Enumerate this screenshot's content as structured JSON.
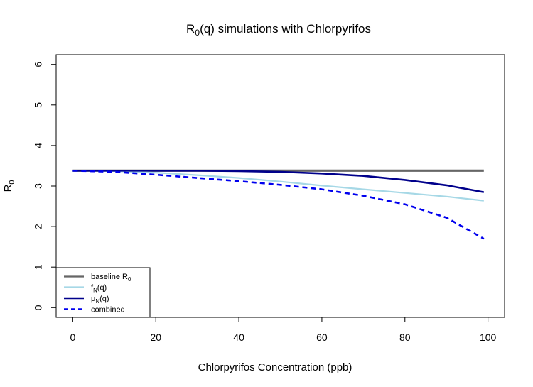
{
  "chart_data": {
    "type": "line",
    "title": {
      "main": "R",
      "sub": "0",
      "rest": "(q) simulations with Chlorpyrifos"
    },
    "xlabel": "Chlorpyrifos Concentration (ppb)",
    "ylabel": {
      "main": "R",
      "sub": "0"
    },
    "xlim": [
      -4,
      104
    ],
    "ylim": [
      -0.24,
      6.24
    ],
    "x_ticks": [
      0,
      20,
      40,
      60,
      80,
      100
    ],
    "x_tick_labels": [
      "0",
      "20",
      "40",
      "60",
      "80",
      "100"
    ],
    "y_ticks": [
      0,
      1,
      2,
      3,
      4,
      5,
      6
    ],
    "y_tick_labels": [
      "0",
      "1",
      "2",
      "3",
      "4",
      "5",
      "6"
    ],
    "grid": false,
    "legend_position": "bottom-left",
    "x": [
      0,
      10,
      20,
      30,
      40,
      50,
      60,
      70,
      80,
      90,
      99
    ],
    "series": [
      {
        "name": {
          "main": "baseline R",
          "sub": "0",
          "rest": ""
        },
        "color": "#666666",
        "style": "solid",
        "width": 3.2,
        "values": [
          3.38,
          3.38,
          3.38,
          3.38,
          3.38,
          3.38,
          3.38,
          3.38,
          3.38,
          3.38,
          3.38
        ]
      },
      {
        "name": {
          "main": "f",
          "sub": "N",
          "rest": "(q)"
        },
        "color": "#a6d8e6",
        "style": "solid",
        "width": 2.2,
        "values": [
          3.38,
          3.37,
          3.33,
          3.27,
          3.2,
          3.11,
          3.01,
          2.92,
          2.83,
          2.74,
          2.64
        ]
      },
      {
        "name": {
          "main": "μ",
          "sub": "N",
          "rest": "(q)"
        },
        "color": "#00008b",
        "style": "solid",
        "width": 2.6,
        "values": [
          3.38,
          3.38,
          3.38,
          3.38,
          3.37,
          3.35,
          3.31,
          3.25,
          3.15,
          3.02,
          2.85
        ]
      },
      {
        "name": {
          "main": "combined",
          "sub": "",
          "rest": ""
        },
        "color": "#0000ee",
        "style": "dashed",
        "width": 2.6,
        "values": [
          3.38,
          3.35,
          3.28,
          3.2,
          3.12,
          3.03,
          2.92,
          2.76,
          2.55,
          2.22,
          1.7
        ]
      }
    ]
  }
}
